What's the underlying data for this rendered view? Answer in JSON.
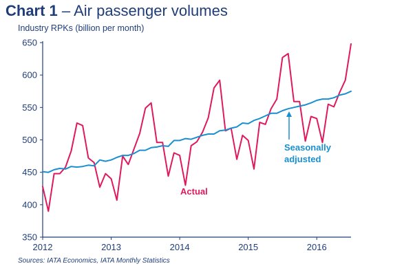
{
  "title": {
    "number": "Chart 1",
    "dash": "–",
    "text": "Air passenger volumes"
  },
  "colors": {
    "text": "#1f3d7a",
    "actual": "#e0185e",
    "sa": "#1a8fd0",
    "axis": "#1f3d7a"
  },
  "chart_data": {
    "type": "line",
    "title": "Chart 1 – Air passenger volumes",
    "ylabel": "Industry RPKs (billion per month)",
    "xlabel": "",
    "ylim": [
      350,
      650
    ],
    "yticks": [
      350,
      400,
      450,
      500,
      550,
      600,
      650
    ],
    "xlim": [
      2012,
      2016.5
    ],
    "xticks": [
      "2012",
      "2013",
      "2014",
      "2015",
      "2016"
    ],
    "grid": false,
    "series": [
      {
        "name": "Actual",
        "x": [
          2012.0,
          2012.0833,
          2012.1667,
          2012.25,
          2012.3333,
          2012.4167,
          2012.5,
          2012.5833,
          2012.6667,
          2012.75,
          2012.8333,
          2012.9167,
          2013.0,
          2013.0833,
          2013.1667,
          2013.25,
          2013.3333,
          2013.4167,
          2013.5,
          2013.5833,
          2013.6667,
          2013.75,
          2013.8333,
          2013.9167,
          2014.0,
          2014.0833,
          2014.1667,
          2014.25,
          2014.3333,
          2014.4167,
          2014.5,
          2014.5833,
          2014.6667,
          2014.75,
          2014.8333,
          2014.9167,
          2015.0,
          2015.0833,
          2015.1667,
          2015.25,
          2015.3333,
          2015.4167,
          2015.5,
          2015.5833,
          2015.6667,
          2015.75,
          2015.8333,
          2015.9167,
          2016.0,
          2016.0833,
          2016.1667,
          2016.25,
          2016.3333,
          2016.4167,
          2016.5
        ],
        "values": [
          428,
          390,
          448,
          448,
          458,
          483,
          526,
          522,
          472,
          465,
          427,
          448,
          440,
          407,
          475,
          462,
          486,
          510,
          549,
          557,
          496,
          496,
          444,
          480,
          476,
          430,
          491,
          497,
          512,
          534,
          580,
          592,
          514,
          518,
          470,
          507,
          499,
          455,
          527,
          524,
          548,
          563,
          627,
          633,
          559,
          559,
          498,
          536,
          533,
          496,
          555,
          551,
          573,
          592,
          648
        ]
      },
      {
        "name": "Seasonally adjusted",
        "x": [
          2012.0,
          2012.0833,
          2012.1667,
          2012.25,
          2012.3333,
          2012.4167,
          2012.5,
          2012.5833,
          2012.6667,
          2012.75,
          2012.8333,
          2012.9167,
          2013.0,
          2013.0833,
          2013.1667,
          2013.25,
          2013.3333,
          2013.4167,
          2013.5,
          2013.5833,
          2013.6667,
          2013.75,
          2013.8333,
          2013.9167,
          2014.0,
          2014.0833,
          2014.1667,
          2014.25,
          2014.3333,
          2014.4167,
          2014.5,
          2014.5833,
          2014.6667,
          2014.75,
          2014.8333,
          2014.9167,
          2015.0,
          2015.0833,
          2015.1667,
          2015.25,
          2015.3333,
          2015.4167,
          2015.5,
          2015.5833,
          2015.6667,
          2015.75,
          2015.8333,
          2015.9167,
          2016.0,
          2016.0833,
          2016.1667,
          2016.25,
          2016.3333,
          2016.4167,
          2016.5
        ],
        "values": [
          451,
          450,
          454,
          456,
          455,
          459,
          458,
          459,
          461,
          460,
          469,
          467,
          469,
          473,
          476,
          476,
          479,
          484,
          484,
          488,
          489,
          491,
          490,
          499,
          499,
          502,
          501,
          504,
          507,
          509,
          509,
          514,
          515,
          518,
          520,
          526,
          525,
          530,
          533,
          537,
          541,
          541,
          545,
          548,
          550,
          552,
          554,
          557,
          561,
          563,
          563,
          565,
          569,
          571,
          575
        ]
      }
    ],
    "annotations": [
      {
        "text": "Actual",
        "series": 0
      },
      {
        "text": "Seasonally adjusted",
        "series": 1
      }
    ],
    "labels": {
      "actual": "Actual",
      "sa_line1": "Seasonally",
      "sa_line2": "adjusted"
    },
    "source": "Sources: IATA Economics, IATA Monthly Statistics"
  }
}
